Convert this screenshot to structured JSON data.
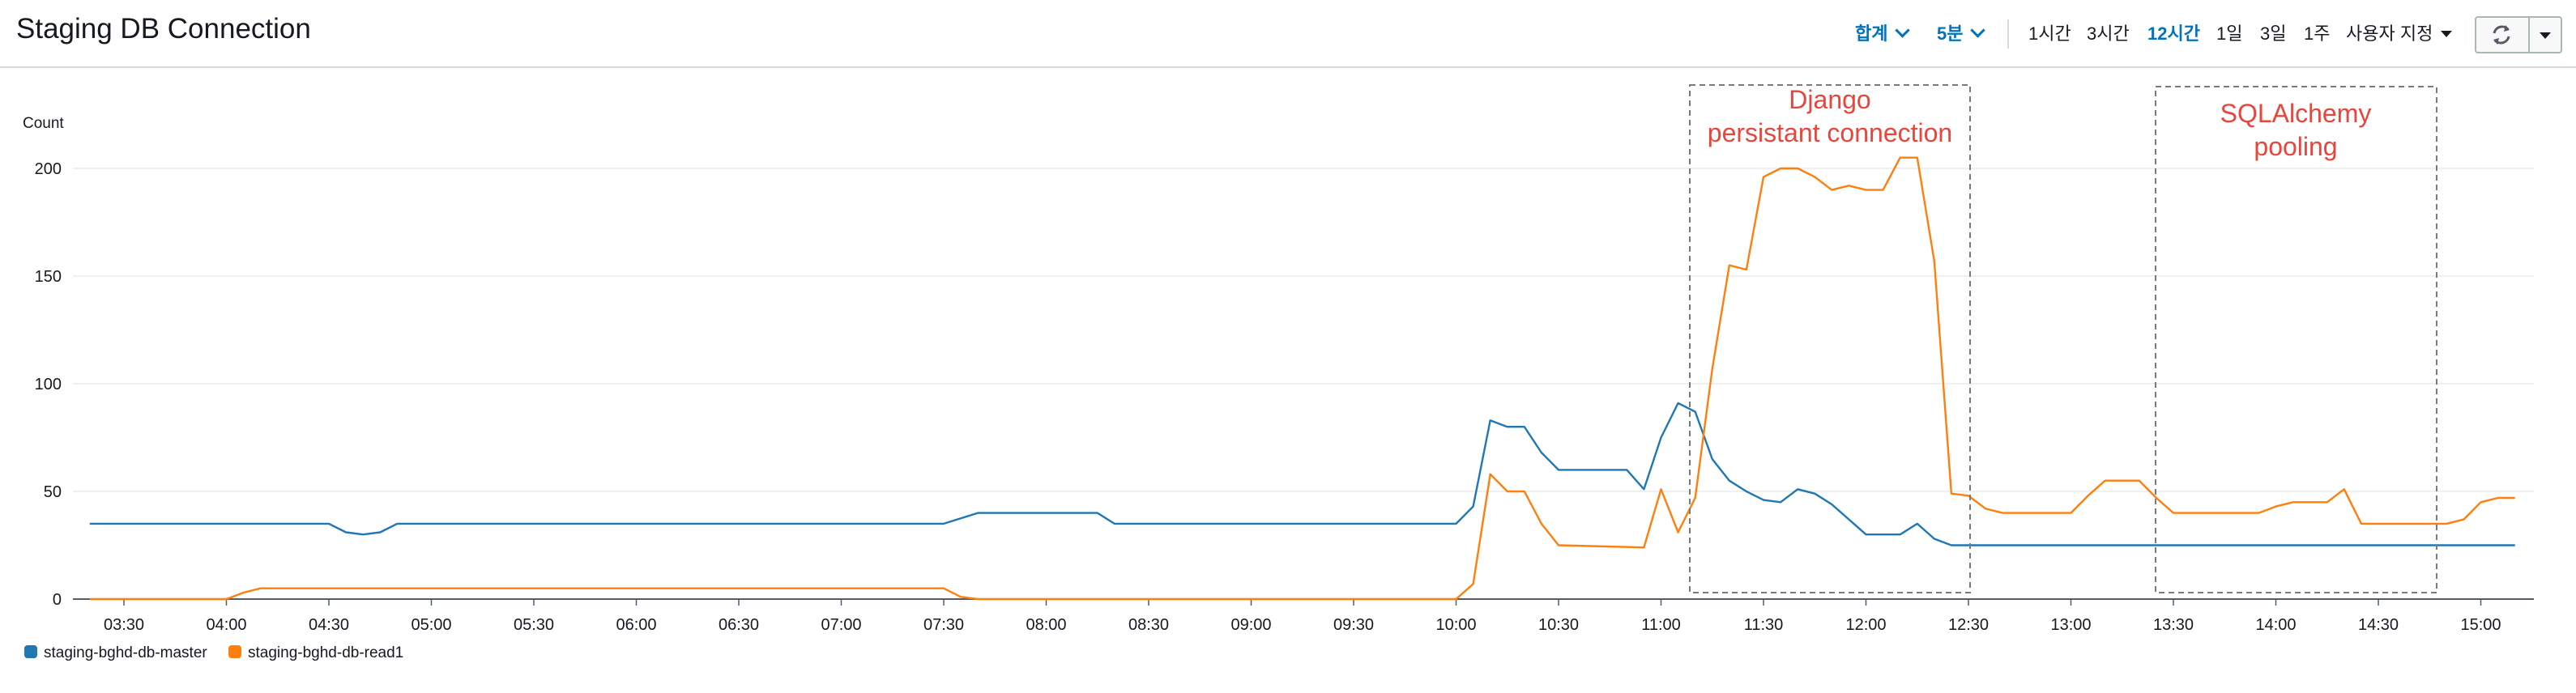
{
  "header": {
    "title": "Staging DB Connection",
    "statistic_label": "합계",
    "period_label": "5분",
    "ranges": [
      "1시간",
      "3시간",
      "12시간",
      "1일",
      "3일",
      "1주"
    ],
    "active_range": "12시간",
    "custom_label": "사용자 지정"
  },
  "colors": {
    "master": "#1f77b4",
    "read1": "#ff7f0e",
    "accent": "#0073bb",
    "annotation": "#e8453c"
  },
  "annotations": {
    "django": [
      "Django",
      "persistant connection"
    ],
    "sqlalchemy": [
      "SQLAlchemy",
      "pooling"
    ]
  },
  "chart_data": {
    "type": "line",
    "ylabel": "Count",
    "ylim": [
      0,
      200
    ],
    "yticks": [
      0,
      50,
      100,
      150,
      200
    ],
    "x_tick_labels": [
      "03:30",
      "04:00",
      "04:30",
      "05:00",
      "05:30",
      "06:00",
      "06:30",
      "07:00",
      "07:30",
      "08:00",
      "08:30",
      "09:00",
      "09:30",
      "10:00",
      "10:30",
      "11:00",
      "11:30",
      "12:00",
      "12:30",
      "13:00",
      "13:30",
      "14:00",
      "14:30",
      "15:00"
    ],
    "grid": true,
    "legend_position": "bottom-left",
    "series": [
      {
        "name": "staging-bghd-db-master",
        "key": "master",
        "points": [
          [
            "03:20",
            35
          ],
          [
            "04:30",
            35
          ],
          [
            "04:35",
            31
          ],
          [
            "04:40",
            30
          ],
          [
            "04:45",
            31
          ],
          [
            "04:50",
            35
          ],
          [
            "07:30",
            35
          ],
          [
            "07:40",
            40
          ],
          [
            "08:15",
            40
          ],
          [
            "08:20",
            35
          ],
          [
            "10:00",
            35
          ],
          [
            "10:05",
            43
          ],
          [
            "10:10",
            83
          ],
          [
            "10:15",
            80
          ],
          [
            "10:20",
            80
          ],
          [
            "10:25",
            68
          ],
          [
            "10:30",
            60
          ],
          [
            "10:50",
            60
          ],
          [
            "10:55",
            51
          ],
          [
            "11:00",
            75
          ],
          [
            "11:05",
            91
          ],
          [
            "11:10",
            87
          ],
          [
            "11:15",
            65
          ],
          [
            "11:20",
            55
          ],
          [
            "11:25",
            50
          ],
          [
            "11:30",
            46
          ],
          [
            "11:35",
            45
          ],
          [
            "11:40",
            51
          ],
          [
            "11:45",
            49
          ],
          [
            "11:50",
            44
          ],
          [
            "11:55",
            37
          ],
          [
            "12:00",
            30
          ],
          [
            "12:10",
            30
          ],
          [
            "12:15",
            35
          ],
          [
            "12:20",
            28
          ],
          [
            "12:25",
            25
          ],
          [
            "15:10",
            25
          ]
        ]
      },
      {
        "name": "staging-bghd-db-read1",
        "key": "read1",
        "points": [
          [
            "03:20",
            0
          ],
          [
            "04:00",
            0
          ],
          [
            "04:05",
            3
          ],
          [
            "04:10",
            5
          ],
          [
            "07:30",
            5
          ],
          [
            "07:35",
            1
          ],
          [
            "07:40",
            0
          ],
          [
            "10:00",
            0
          ],
          [
            "10:05",
            7
          ],
          [
            "10:10",
            58
          ],
          [
            "10:15",
            50
          ],
          [
            "10:20",
            50
          ],
          [
            "10:25",
            35
          ],
          [
            "10:30",
            25
          ],
          [
            "10:55",
            24
          ],
          [
            "11:00",
            51
          ],
          [
            "11:05",
            31
          ],
          [
            "11:10",
            47
          ],
          [
            "11:15",
            107
          ],
          [
            "11:20",
            155
          ],
          [
            "11:25",
            153
          ],
          [
            "11:30",
            196
          ],
          [
            "11:35",
            200
          ],
          [
            "11:40",
            200
          ],
          [
            "11:45",
            196
          ],
          [
            "11:50",
            190
          ],
          [
            "11:55",
            192
          ],
          [
            "12:00",
            190
          ],
          [
            "12:05",
            190
          ],
          [
            "12:10",
            205
          ],
          [
            "12:15",
            205
          ],
          [
            "12:20",
            157
          ],
          [
            "12:25",
            49
          ],
          [
            "12:30",
            48
          ],
          [
            "12:35",
            42
          ],
          [
            "12:40",
            40
          ],
          [
            "13:00",
            40
          ],
          [
            "13:05",
            48
          ],
          [
            "13:10",
            55
          ],
          [
            "13:20",
            55
          ],
          [
            "13:25",
            47
          ],
          [
            "13:30",
            40
          ],
          [
            "13:55",
            40
          ],
          [
            "14:00",
            43
          ],
          [
            "14:05",
            45
          ],
          [
            "14:15",
            45
          ],
          [
            "14:20",
            51
          ],
          [
            "14:25",
            35
          ],
          [
            "14:50",
            35
          ],
          [
            "14:55",
            37
          ],
          [
            "15:00",
            45
          ],
          [
            "15:05",
            47
          ],
          [
            "15:10",
            47
          ]
        ]
      }
    ]
  }
}
